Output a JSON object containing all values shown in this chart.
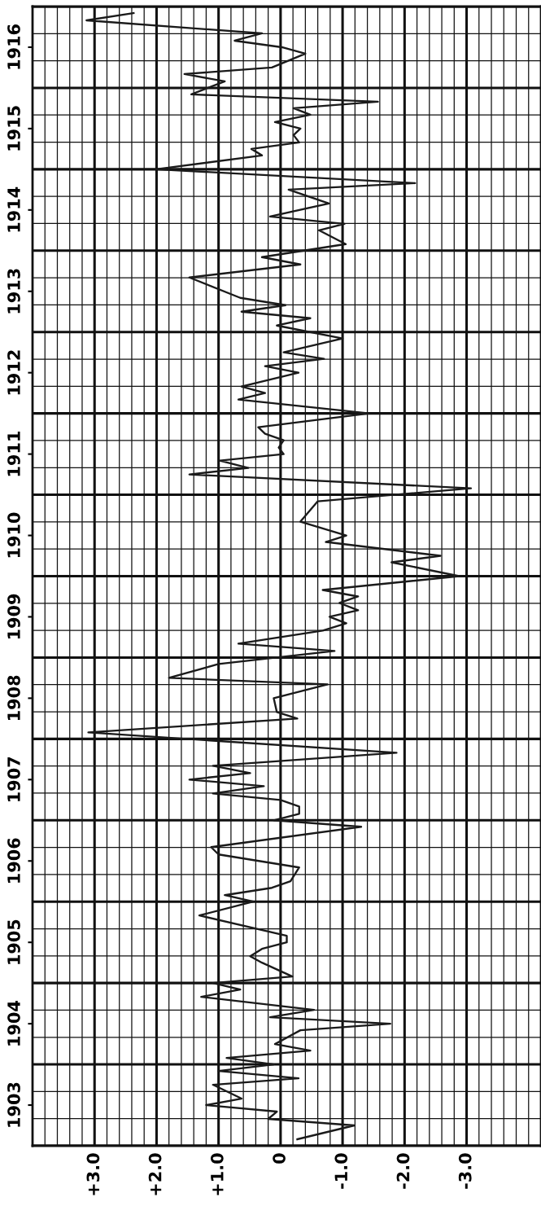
{
  "chart_data": {
    "type": "line",
    "orientation": "horizontal",
    "color": "#1a1a1a",
    "grid": true,
    "line_style": "solid",
    "x": [
      1903.08,
      1903.25,
      1903.33,
      1903.42,
      1903.5,
      1903.58,
      1903.75,
      1903.83,
      1903.92,
      1904.0,
      1904.08,
      1904.17,
      1904.25,
      1904.42,
      1904.5,
      1904.58,
      1904.67,
      1904.83,
      1904.92,
      1905.0,
      1905.08,
      1905.25,
      1905.33,
      1905.42,
      1905.5,
      1905.58,
      1905.83,
      1906.0,
      1906.08,
      1906.17,
      1906.25,
      1906.42,
      1906.58,
      1906.67,
      1906.92,
      1907.0,
      1907.08,
      1907.17,
      1907.25,
      1907.33,
      1907.42,
      1907.5,
      1907.58,
      1907.67,
      1907.83,
      1908.08,
      1908.25,
      1908.33,
      1908.5,
      1908.67,
      1908.75,
      1908.92,
      1909.08,
      1909.17,
      1909.33,
      1909.42,
      1909.5,
      1909.58,
      1909.67,
      1909.75,
      1909.83,
      1910.0,
      1910.17,
      1910.25,
      1910.42,
      1910.5,
      1910.67,
      1910.92,
      1911.08,
      1911.25,
      1911.33,
      1911.42,
      1911.5,
      1911.58,
      1911.67,
      1911.75,
      1911.83,
      1912.0,
      1912.17,
      1912.25,
      1912.33,
      1912.5,
      1912.58,
      1912.67,
      1912.75,
      1912.92,
      1913.08,
      1913.17,
      1913.25,
      1913.33,
      1913.42,
      1913.67,
      1913.83,
      1913.92,
      1914.08,
      1914.25,
      1914.33,
      1914.42,
      1914.58,
      1914.75,
      1914.83,
      1915.0,
      1915.17,
      1915.25,
      1915.33,
      1915.42,
      1915.5,
      1915.58,
      1915.67,
      1915.75,
      1915.83,
      1915.92,
      1916.08,
      1916.17,
      1916.25,
      1916.42,
      1916.5,
      1916.58,
      1916.67,
      1916.83,
      1916.92
    ],
    "values": [
      -0.27,
      -1.19,
      0.2,
      0.06,
      1.2,
      0.63,
      1.09,
      -0.29,
      1.0,
      0.11,
      0.87,
      -0.48,
      0.09,
      -0.32,
      -1.77,
      0.17,
      -0.54,
      1.28,
      0.65,
      1.09,
      -0.19,
      0.3,
      0.49,
      0.3,
      -0.1,
      -0.1,
      1.31,
      0.44,
      0.9,
      0.14,
      -0.16,
      -0.3,
      1.0,
      1.12,
      -1.3,
      0.11,
      -0.3,
      -0.3,
      0.0,
      1.09,
      0.27,
      1.47,
      0.49,
      1.09,
      -1.87,
      3.1,
      -0.27,
      0.06,
      0.11,
      -0.76,
      1.8,
      1.0,
      -0.87,
      0.68,
      -0.68,
      -1.06,
      -0.79,
      -1.25,
      -0.95,
      -1.25,
      -0.68,
      -2.88,
      -1.79,
      -2.58,
      -0.73,
      -1.06,
      -0.32,
      -0.6,
      -3.07,
      1.47,
      0.52,
      0.98,
      -0.05,
      0.03,
      -0.05,
      0.25,
      0.36,
      -1.43,
      0.68,
      0.25,
      0.63,
      -0.29,
      0.25,
      -0.7,
      -0.05,
      -1.0,
      0.06,
      -0.48,
      0.63,
      -0.08,
      0.65,
      1.47,
      -0.32,
      0.3,
      -1.05,
      -0.62,
      -1.03,
      0.17,
      -0.78,
      -0.13,
      -2.17,
      2.01,
      0.3,
      0.47,
      -0.3,
      -0.21,
      -0.32,
      0.09,
      -0.48,
      -0.21,
      -1.57,
      1.44,
      0.9,
      1.55,
      0.14,
      -0.4,
      -0.02,
      0.74,
      0.3,
      3.13,
      2.37
    ],
    "xlim": [
      4.0,
      -4.2
    ],
    "xticks": [
      {
        "value": 3,
        "label": "+3.0"
      },
      {
        "value": 2,
        "label": "+2.0"
      },
      {
        "value": 1,
        "label": "+1.0"
      },
      {
        "value": 0,
        "label": "0"
      },
      {
        "value": -1,
        "label": "-1.0"
      },
      {
        "value": -2,
        "label": "-2.0"
      },
      {
        "value": -3,
        "label": "-3.0"
      }
    ],
    "ylim": [
      1903,
      1917
    ],
    "yticks": [
      {
        "value": 1903.5,
        "label": "1903"
      },
      {
        "value": 1904.5,
        "label": "1904"
      },
      {
        "value": 1905.5,
        "label": "1905"
      },
      {
        "value": 1906.5,
        "label": "1906"
      },
      {
        "value": 1907.5,
        "label": "1907"
      },
      {
        "value": 1908.5,
        "label": "1908"
      },
      {
        "value": 1909.5,
        "label": "1909"
      },
      {
        "value": 1910.5,
        "label": "1910"
      },
      {
        "value": 1911.5,
        "label": "1911"
      },
      {
        "value": 1912.5,
        "label": "1912"
      },
      {
        "value": 1913.5,
        "label": "1913"
      },
      {
        "value": 1914.5,
        "label": "1914"
      },
      {
        "value": 1915.5,
        "label": "1915"
      },
      {
        "value": 1916.5,
        "label": "1916"
      }
    ]
  }
}
